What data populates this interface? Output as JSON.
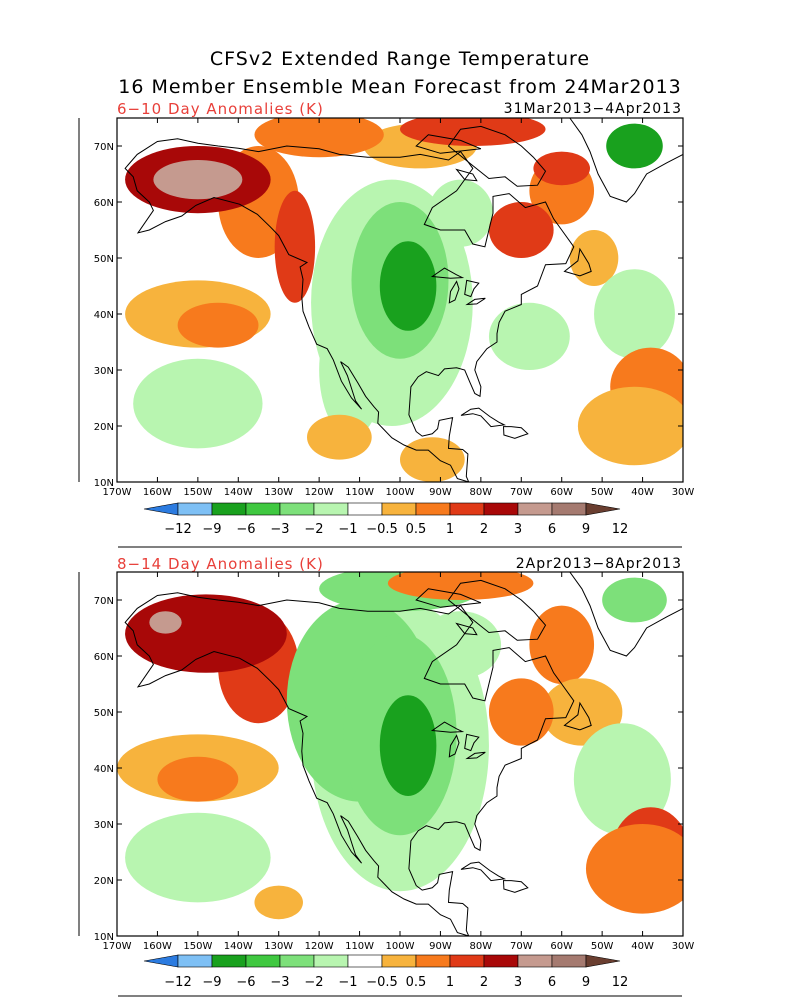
{
  "title_line1": "CFSv2 Extended Range Temperature",
  "title_line2": "16 Member Ensemble Mean Forecast from 24Mar2013",
  "colors": {
    "legend": [
      "#2b7be0",
      "#7ec0f5",
      "#19a11e",
      "#3fc840",
      "#7de07a",
      "#b8f5b0",
      "#ffffff",
      "#f7b33d",
      "#f77a1d",
      "#e03a17",
      "#a80808",
      "#c59a8f",
      "#a57a70",
      "#6a3e30"
    ],
    "coast": "#000000"
  },
  "legend": {
    "labels": [
      "−12",
      "−9",
      "−6",
      "−3",
      "−2",
      "−1",
      "−0.5",
      "0.5",
      "1",
      "2",
      "3",
      "6",
      "9",
      "12"
    ]
  },
  "axes": {
    "lat_labels": [
      "70N",
      "60N",
      "50N",
      "40N",
      "30N",
      "20N",
      "10N"
    ],
    "lon_labels": [
      "170W",
      "160W",
      "150W",
      "140W",
      "130W",
      "120W",
      "110W",
      "100W",
      "90W",
      "80W",
      "70W",
      "60W",
      "50W",
      "40W",
      "30W"
    ]
  },
  "panels": [
    {
      "label": "6−10 Day Anomalies (K)",
      "dates": "31Mar2013−4Apr2013",
      "regions": [
        {
          "lon": -150,
          "lat": 64,
          "rx": 18,
          "ry": 6,
          "cat": 10,
          "label_hint": ""
        },
        {
          "lon": -150,
          "lat": 64,
          "rx": 11,
          "ry": 3.5,
          "cat": 11
        },
        {
          "lon": -100,
          "lat": 46,
          "rx": 12,
          "ry": 14,
          "cat": 4
        },
        {
          "lon": -98,
          "lat": 45,
          "rx": 7,
          "ry": 8,
          "cat": 2
        },
        {
          "lon": -70,
          "lat": 55,
          "rx": 8,
          "ry": 5,
          "cat": 9
        },
        {
          "lon": -82,
          "lat": 73,
          "rx": 18,
          "ry": 3,
          "cat": 9
        },
        {
          "lon": -42,
          "lat": 70,
          "rx": 7,
          "ry": 4,
          "cat": 2
        },
        {
          "lon": -42,
          "lat": 20,
          "rx": 14,
          "ry": 7,
          "cat": 7
        }
      ]
    },
    {
      "label": "8−14 Day Anomalies (K)",
      "dates": "2Apr2013−8Apr2013",
      "regions": [
        {
          "lon": -148,
          "lat": 64,
          "rx": 20,
          "ry": 7,
          "cat": 10
        },
        {
          "lon": -158,
          "lat": 66,
          "rx": 4,
          "ry": 2,
          "cat": 11
        },
        {
          "lon": -100,
          "lat": 46,
          "rx": 14,
          "ry": 18,
          "cat": 4
        },
        {
          "lon": -98,
          "lat": 44,
          "rx": 7,
          "ry": 9,
          "cat": 2
        },
        {
          "lon": -70,
          "lat": 50,
          "rx": 8,
          "ry": 6,
          "cat": 8
        },
        {
          "lon": -85,
          "lat": 73,
          "rx": 18,
          "ry": 3,
          "cat": 8
        },
        {
          "lon": -40,
          "lat": 22,
          "rx": 14,
          "ry": 8,
          "cat": 8
        }
      ]
    }
  ]
}
